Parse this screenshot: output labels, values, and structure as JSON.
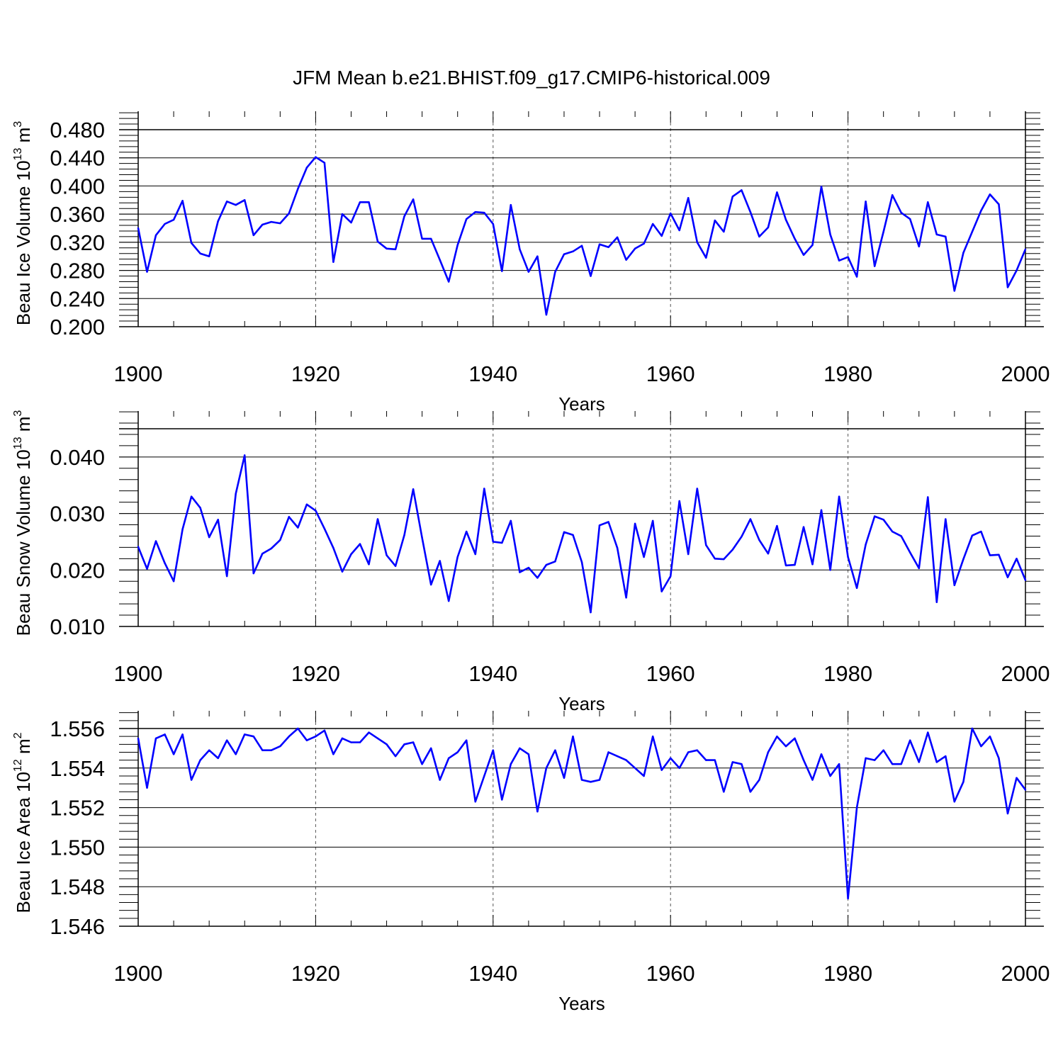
{
  "figure": {
    "title": "JFM Mean b.e21.BHIST.f09_g17.CMIP6-historical.009"
  },
  "chart_data": [
    {
      "type": "line",
      "xlabel": "Years",
      "ylabel_base": "Beau Ice Volume 10",
      "ylabel_exp": "13",
      "ylabel_unit": " m",
      "ylabel_unit_exp": "3",
      "xlim": [
        1900,
        2000
      ],
      "ylim": [
        0.2,
        0.48
      ],
      "y_ticks": [
        "0.200",
        "0.240",
        "0.280",
        "0.320",
        "0.360",
        "0.400",
        "0.440",
        "0.480"
      ],
      "x_ticks": [
        "1900",
        "1920",
        "1940",
        "1960",
        "1980",
        "2000"
      ],
      "grid": "vertical dashed lines at major x ticks",
      "line_color": "#0000ff",
      "x": [
        1900,
        1901,
        1902,
        1903,
        1904,
        1905,
        1906,
        1907,
        1908,
        1909,
        1910,
        1911,
        1912,
        1913,
        1914,
        1915,
        1916,
        1917,
        1918,
        1919,
        1920,
        1921,
        1922,
        1923,
        1924,
        1925,
        1926,
        1927,
        1928,
        1929,
        1930,
        1931,
        1932,
        1933,
        1934,
        1935,
        1936,
        1937,
        1938,
        1939,
        1940,
        1941,
        1942,
        1943,
        1944,
        1945,
        1946,
        1947,
        1948,
        1949,
        1950,
        1951,
        1952,
        1953,
        1954,
        1955,
        1956,
        1957,
        1958,
        1959,
        1960,
        1961,
        1962,
        1963,
        1964,
        1965,
        1966,
        1967,
        1968,
        1969,
        1970,
        1971,
        1972,
        1973,
        1974,
        1975,
        1976,
        1977,
        1978,
        1979,
        1980,
        1981,
        1982,
        1983,
        1984,
        1985,
        1986,
        1987,
        1988,
        1989,
        1990,
        1991,
        1992,
        1993,
        1994,
        1995,
        1996,
        1997,
        1998,
        1999,
        2000
      ],
      "values": [
        0.34,
        0.278,
        0.33,
        0.346,
        0.352,
        0.379,
        0.319,
        0.304,
        0.3,
        0.35,
        0.378,
        0.373,
        0.38,
        0.33,
        0.345,
        0.349,
        0.347,
        0.361,
        0.396,
        0.426,
        0.441,
        0.433,
        0.292,
        0.36,
        0.348,
        0.377,
        0.377,
        0.321,
        0.311,
        0.31,
        0.357,
        0.381,
        0.325,
        0.325,
        0.295,
        0.264,
        0.316,
        0.353,
        0.363,
        0.362,
        0.346,
        0.279,
        0.373,
        0.31,
        0.278,
        0.3,
        0.217,
        0.278,
        0.303,
        0.307,
        0.315,
        0.272,
        0.317,
        0.313,
        0.327,
        0.295,
        0.311,
        0.318,
        0.346,
        0.329,
        0.361,
        0.337,
        0.383,
        0.32,
        0.298,
        0.351,
        0.335,
        0.385,
        0.394,
        0.363,
        0.328,
        0.341,
        0.391,
        0.352,
        0.325,
        0.302,
        0.316,
        0.399,
        0.331,
        0.294,
        0.299,
        0.271,
        0.378,
        0.286,
        0.335,
        0.387,
        0.362,
        0.353,
        0.314,
        0.377,
        0.331,
        0.328,
        0.251,
        0.305,
        0.335,
        0.365,
        0.388,
        0.374,
        0.256,
        0.28,
        0.31
      ]
    },
    {
      "type": "line",
      "xlabel": "Years",
      "ylabel_base": "Beau Snow Volume 10",
      "ylabel_exp": "13",
      "ylabel_unit": " m",
      "ylabel_unit_exp": "3",
      "xlim": [
        1900,
        2000
      ],
      "ylim": [
        0.01,
        0.045
      ],
      "y_ticks": [
        "0.010",
        "0.020",
        "0.030",
        "0.040"
      ],
      "x_ticks": [
        "1900",
        "1920",
        "1940",
        "1960",
        "1980",
        "2000"
      ],
      "grid": "vertical dashed lines at major x ticks",
      "line_color": "#0000ff",
      "x": [
        1900,
        1901,
        1902,
        1903,
        1904,
        1905,
        1906,
        1907,
        1908,
        1909,
        1910,
        1911,
        1912,
        1913,
        1914,
        1915,
        1916,
        1917,
        1918,
        1919,
        1920,
        1921,
        1922,
        1923,
        1924,
        1925,
        1926,
        1927,
        1928,
        1929,
        1930,
        1931,
        1932,
        1933,
        1934,
        1935,
        1936,
        1937,
        1938,
        1939,
        1940,
        1941,
        1942,
        1943,
        1944,
        1945,
        1946,
        1947,
        1948,
        1949,
        1950,
        1951,
        1952,
        1953,
        1954,
        1955,
        1956,
        1957,
        1958,
        1959,
        1960,
        1961,
        1962,
        1963,
        1964,
        1965,
        1966,
        1967,
        1968,
        1969,
        1970,
        1971,
        1972,
        1973,
        1974,
        1975,
        1976,
        1977,
        1978,
        1979,
        1980,
        1981,
        1982,
        1983,
        1984,
        1985,
        1986,
        1987,
        1988,
        1989,
        1990,
        1991,
        1992,
        1993,
        1994,
        1995,
        1996,
        1997,
        1998,
        1999,
        2000
      ],
      "values": [
        0.0241,
        0.0202,
        0.0251,
        0.0212,
        0.018,
        0.0272,
        0.033,
        0.031,
        0.0258,
        0.0289,
        0.0189,
        0.0335,
        0.0403,
        0.0194,
        0.0229,
        0.0238,
        0.0253,
        0.0294,
        0.0275,
        0.0316,
        0.0305,
        0.0273,
        0.0239,
        0.0197,
        0.0228,
        0.0246,
        0.021,
        0.029,
        0.0226,
        0.0207,
        0.0262,
        0.0343,
        0.0257,
        0.0174,
        0.0216,
        0.0145,
        0.0223,
        0.0268,
        0.0228,
        0.0344,
        0.025,
        0.0248,
        0.0287,
        0.0196,
        0.0204,
        0.0186,
        0.0209,
        0.0215,
        0.0267,
        0.0262,
        0.0214,
        0.0125,
        0.0279,
        0.0285,
        0.0239,
        0.0151,
        0.0282,
        0.0223,
        0.0287,
        0.0162,
        0.0189,
        0.0322,
        0.0228,
        0.0344,
        0.0244,
        0.022,
        0.0219,
        0.0236,
        0.0259,
        0.029,
        0.0253,
        0.0229,
        0.0278,
        0.0208,
        0.0209,
        0.0276,
        0.021,
        0.0306,
        0.02,
        0.033,
        0.0223,
        0.0168,
        0.0245,
        0.0295,
        0.0289,
        0.0268,
        0.026,
        0.0231,
        0.0203,
        0.0329,
        0.0143,
        0.029,
        0.0173,
        0.0219,
        0.0261,
        0.0268,
        0.0226,
        0.0227,
        0.0187,
        0.022,
        0.0182
      ]
    },
    {
      "type": "line",
      "xlabel": "Years",
      "ylabel_base": "Beau Ice Area 10",
      "ylabel_exp": "12",
      "ylabel_unit": " m",
      "ylabel_unit_exp": "2",
      "xlim": [
        1900,
        2000
      ],
      "ylim": [
        1.546,
        1.556
      ],
      "y_ticks": [
        "1.546",
        "1.548",
        "1.550",
        "1.552",
        "1.554",
        "1.556"
      ],
      "x_ticks": [
        "1900",
        "1920",
        "1940",
        "1960",
        "1980",
        "2000"
      ],
      "grid": "vertical dashed lines at major x ticks",
      "line_color": "#0000ff",
      "x": [
        1900,
        1901,
        1902,
        1903,
        1904,
        1905,
        1906,
        1907,
        1908,
        1909,
        1910,
        1911,
        1912,
        1913,
        1914,
        1915,
        1916,
        1917,
        1918,
        1919,
        1920,
        1921,
        1922,
        1923,
        1924,
        1925,
        1926,
        1927,
        1928,
        1929,
        1930,
        1931,
        1932,
        1933,
        1934,
        1935,
        1936,
        1937,
        1938,
        1939,
        1940,
        1941,
        1942,
        1943,
        1944,
        1945,
        1946,
        1947,
        1948,
        1949,
        1950,
        1951,
        1952,
        1953,
        1954,
        1955,
        1956,
        1957,
        1958,
        1959,
        1960,
        1961,
        1962,
        1963,
        1964,
        1965,
        1966,
        1967,
        1968,
        1969,
        1970,
        1971,
        1972,
        1973,
        1974,
        1975,
        1976,
        1977,
        1978,
        1979,
        1980,
        1981,
        1982,
        1983,
        1984,
        1985,
        1986,
        1987,
        1988,
        1989,
        1990,
        1991,
        1992,
        1993,
        1994,
        1995,
        1996,
        1997,
        1998,
        1999,
        2000
      ],
      "values": [
        1.5555,
        1.553,
        1.5555,
        1.5557,
        1.5547,
        1.5557,
        1.5534,
        1.5544,
        1.5549,
        1.5545,
        1.5554,
        1.5547,
        1.5557,
        1.5556,
        1.5549,
        1.5549,
        1.5551,
        1.5556,
        1.556,
        1.5554,
        1.5556,
        1.5559,
        1.5547,
        1.5555,
        1.5553,
        1.5553,
        1.5558,
        1.5555,
        1.5552,
        1.5546,
        1.5552,
        1.5553,
        1.5542,
        1.555,
        1.5534,
        1.5545,
        1.5548,
        1.5554,
        1.5523,
        1.5536,
        1.5549,
        1.5524,
        1.5542,
        1.555,
        1.5547,
        1.5518,
        1.554,
        1.5549,
        1.5535,
        1.5556,
        1.5534,
        1.5533,
        1.5534,
        1.5548,
        1.5546,
        1.5544,
        1.554,
        1.5536,
        1.5556,
        1.5539,
        1.5545,
        1.554,
        1.5548,
        1.5549,
        1.5544,
        1.5544,
        1.5528,
        1.5543,
        1.5542,
        1.5528,
        1.5534,
        1.5548,
        1.5556,
        1.5551,
        1.5555,
        1.5544,
        1.5534,
        1.5547,
        1.5536,
        1.5542,
        1.5474,
        1.552,
        1.5545,
        1.5544,
        1.5549,
        1.5542,
        1.5542,
        1.5554,
        1.5543,
        1.5558,
        1.5543,
        1.5546,
        1.5523,
        1.5533,
        1.556,
        1.5551,
        1.5556,
        1.5545,
        1.5517,
        1.5535,
        1.5529
      ]
    }
  ]
}
